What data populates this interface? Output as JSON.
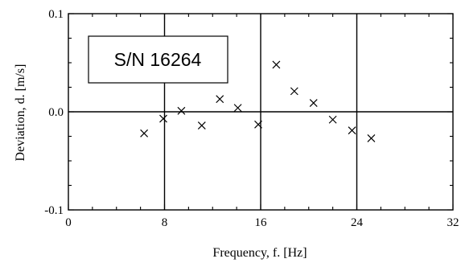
{
  "chart_data": {
    "type": "scatter",
    "title": "",
    "xlabel": "Frequency, f. [Hz]",
    "ylabel": "Deviation, d. [m/s]",
    "xlim": [
      0,
      32
    ],
    "ylim": [
      -0.1,
      0.1
    ],
    "x_ticks": [
      0,
      8,
      16,
      24,
      32
    ],
    "x_tick_labels": [
      "0",
      "8",
      "16",
      "24",
      "32"
    ],
    "y_ticks": [
      0.1,
      0.0,
      -0.1
    ],
    "y_tick_labels": [
      "0.1",
      "0.0",
      "-0.1"
    ],
    "grid": "major only",
    "marker": "x",
    "annotation": "S/N 16264",
    "series": [
      {
        "x": [
          6.3,
          7.9,
          9.4,
          11.1,
          12.6,
          14.1,
          15.8,
          17.3,
          18.8,
          20.4,
          22.0,
          23.6,
          25.2
        ],
        "y": [
          -0.022,
          -0.007,
          0.001,
          -0.014,
          0.013,
          0.004,
          -0.013,
          0.048,
          0.021,
          0.009,
          -0.008,
          -0.019,
          -0.027
        ]
      }
    ]
  }
}
